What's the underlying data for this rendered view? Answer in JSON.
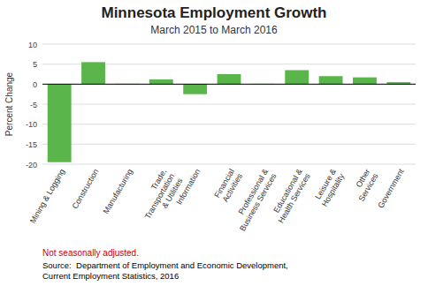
{
  "chart_data": {
    "type": "bar",
    "title": "Minnesota Employment Growth",
    "subtitle": "March 2015 to March 2016",
    "categories": [
      "Mining & Logging",
      "Construction",
      "Manufacturing",
      "Trade,\nTransportation\n& Utilities",
      "Information",
      "Financial\nActivities",
      "Professional &\nBusiness Services",
      "Educational &\nHealth Services",
      "Leisure &\nHospitality",
      "Other\nServices",
      "Government"
    ],
    "values": [
      -19.5,
      5.5,
      0.1,
      1.2,
      -2.5,
      2.5,
      0.1,
      3.5,
      2.0,
      1.7,
      0.5
    ],
    "color": "#5ab54b",
    "ylim": [
      -20.0,
      10.0
    ],
    "yticks": [
      -20,
      -15,
      -10,
      -5,
      0,
      5,
      10
    ],
    "ylabel": "Percent Change",
    "grid": true,
    "note": "Not seasonally adjusted.",
    "source": "Source:  Department of Employment and Economic Development,\nCurrent Employment Statistics, 2016"
  }
}
